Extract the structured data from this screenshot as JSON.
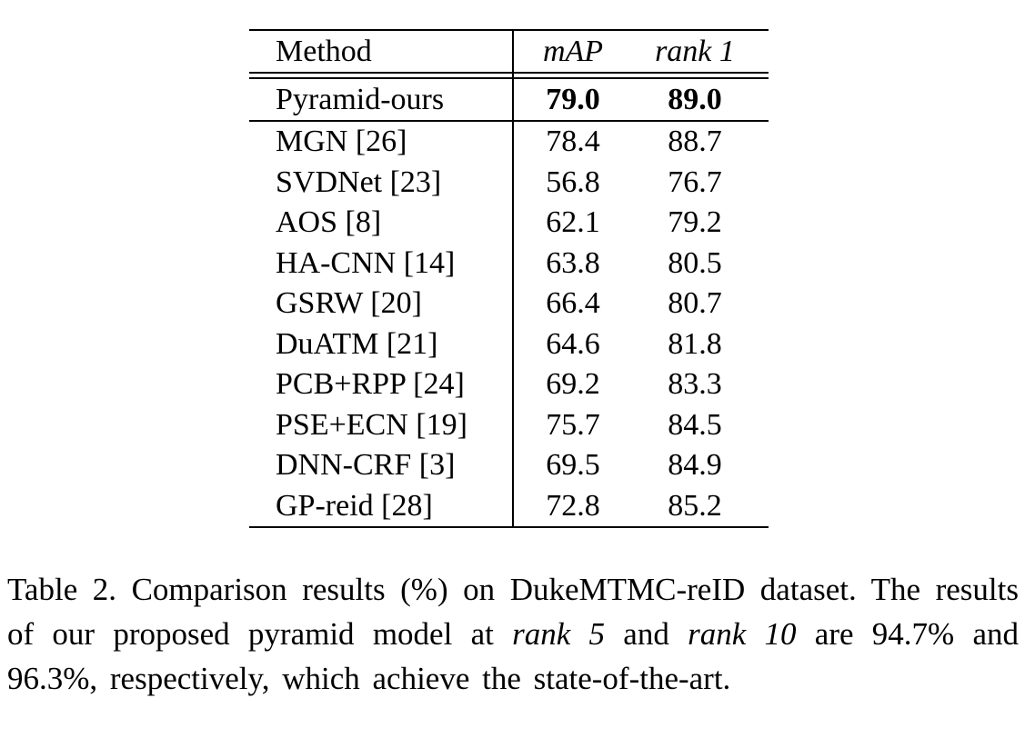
{
  "table": {
    "columns": {
      "method": "Method",
      "map": "mAP",
      "rank1": "rank 1"
    },
    "highlight_row": {
      "method": "Pyramid-ours",
      "map": "79.0",
      "rank1": "89.0"
    },
    "rows": [
      {
        "method": "MGN [26]",
        "map": "78.4",
        "rank1": "88.7"
      },
      {
        "method": "SVDNet [23]",
        "map": "56.8",
        "rank1": "76.7"
      },
      {
        "method": "AOS [8]",
        "map": "62.1",
        "rank1": "79.2"
      },
      {
        "method": "HA-CNN [14]",
        "map": "63.8",
        "rank1": "80.5"
      },
      {
        "method": "GSRW [20]",
        "map": "66.4",
        "rank1": "80.7"
      },
      {
        "method": "DuATM [21]",
        "map": "64.6",
        "rank1": "81.8"
      },
      {
        "method": "PCB+RPP [24]",
        "map": "69.2",
        "rank1": "83.3"
      },
      {
        "method": "PSE+ECN [19]",
        "map": "75.7",
        "rank1": "84.5"
      },
      {
        "method": "DNN-CRF [3]",
        "map": "69.5",
        "rank1": "84.9"
      },
      {
        "method": "GP-reid [28]",
        "map": "72.8",
        "rank1": "85.2"
      }
    ]
  },
  "caption": {
    "segments": [
      {
        "text": "Table 2. Comparison results (%) on DukeMTMC-reID dataset. The results of our proposed pyramid model at "
      },
      {
        "text": "rank 5",
        "italic": true
      },
      {
        "text": " and "
      },
      {
        "text": "rank 10",
        "italic": true
      },
      {
        "text": " are 94.7% and 96.3%, respectively, which achieve the state-of-the-art."
      }
    ]
  },
  "colors": {
    "text": "#000000",
    "background": "#ffffff",
    "rule": "#000000"
  }
}
